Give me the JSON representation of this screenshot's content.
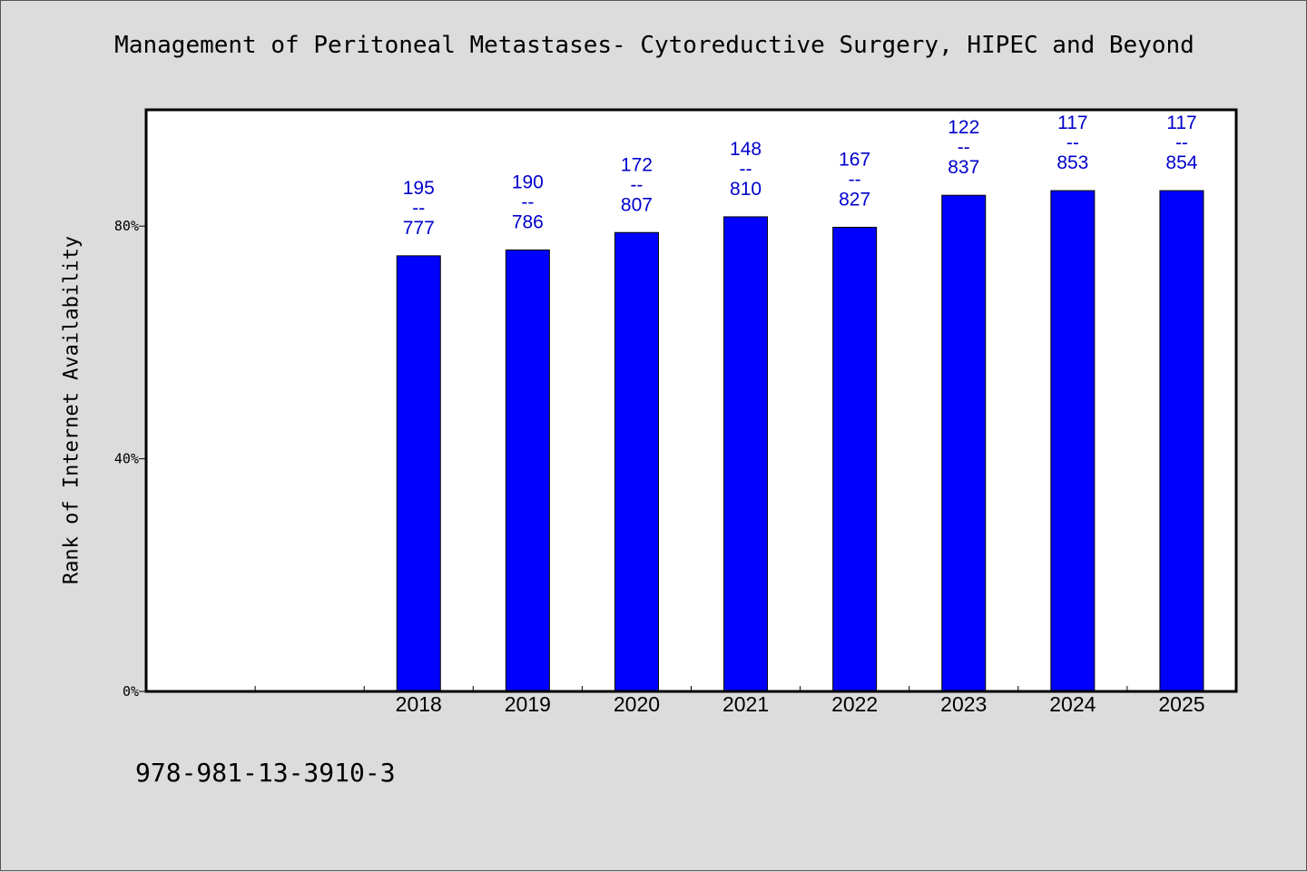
{
  "chart_data": {
    "type": "bar",
    "title": "Management of Peritoneal Metastases- Cytoreductive Surgery, HIPEC and Beyond",
    "ylabel": "Rank of Internet Availability",
    "xlabel": "",
    "ylim": [
      0,
      100
    ],
    "yticks": [
      {
        "value": 0,
        "label": "0%"
      },
      {
        "value": 40,
        "label": "40%"
      },
      {
        "value": 80,
        "label": "80%"
      }
    ],
    "categories": [
      "",
      "",
      "2018",
      "2019",
      "2020",
      "2021",
      "2022",
      "2023",
      "2024",
      "2025"
    ],
    "values": [
      null,
      null,
      74.9,
      75.9,
      78.9,
      81.6,
      79.8,
      85.3,
      86.1,
      86.1
    ],
    "data_labels": [
      null,
      null,
      {
        "top": "195",
        "sep": "--",
        "bottom": "777"
      },
      {
        "top": "190",
        "sep": "--",
        "bottom": "786"
      },
      {
        "top": "172",
        "sep": "--",
        "bottom": "807"
      },
      {
        "top": "148",
        "sep": "--",
        "bottom": "810"
      },
      {
        "top": "167",
        "sep": "--",
        "bottom": "827"
      },
      {
        "top": "122",
        "sep": "--",
        "bottom": "837"
      },
      {
        "top": "117",
        "sep": "--",
        "bottom": "853"
      },
      {
        "top": "117",
        "sep": "--",
        "bottom": "854"
      }
    ],
    "bar_color": "#0000ff",
    "label_color": "#0000cc",
    "grid": false,
    "legend": "none"
  },
  "footer": {
    "isbn": "978-981-13-3910-3"
  }
}
